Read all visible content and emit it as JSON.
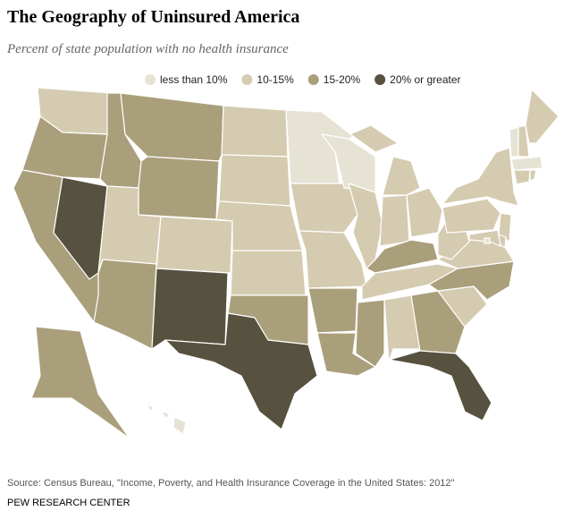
{
  "header": {
    "title": "The Geography of Uninsured America",
    "subtitle": "Percent of state population with no health insurance"
  },
  "legend": {
    "items": [
      {
        "label": "less than 10%",
        "color": "#e6e2d4"
      },
      {
        "label": "10-15%",
        "color": "#d5cbb0"
      },
      {
        "label": "15-20%",
        "color": "#aa9f7b"
      },
      {
        "label": "20% or greater",
        "color": "#57513f"
      }
    ]
  },
  "footer": {
    "source": "Source: Census Bureau, \"Income, Poverty, and Health Insurance Coverage in the United States: 2012\"",
    "credit": "PEW RESEARCH CENTER"
  }
}
